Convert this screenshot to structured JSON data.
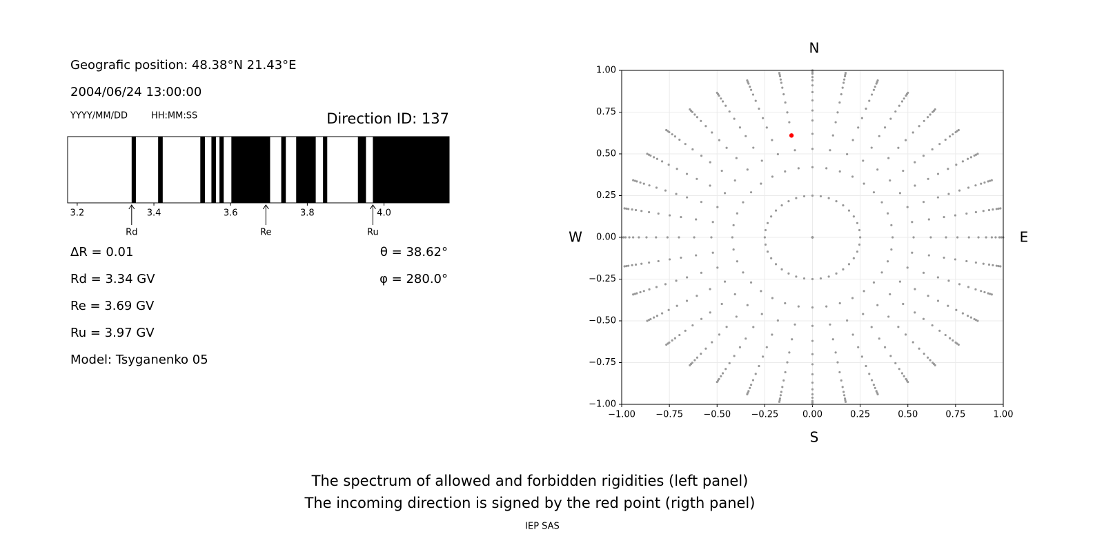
{
  "header": {
    "position": "Geografic position: 48.38°N 21.43°E",
    "datetime": "2004/06/24 13:00:00",
    "date_format": "YYYY/MM/DD",
    "time_format": "HH:MM:SS",
    "direction_id": "Direction ID: 137"
  },
  "params_left": [
    "ΔR = 0.01",
    "Rd = 3.34 GV",
    "Re = 3.69 GV",
    "Ru = 3.97 GV",
    "Model: Tsyganenko 05"
  ],
  "params_right": [
    "θ = 38.62°",
    "φ = 280.0°"
  ],
  "chart_data": [
    {
      "type": "broken_bar",
      "xlim": [
        3.175,
        4.17
      ],
      "xticks": [
        3.2,
        3.4,
        3.6,
        3.8,
        {
          "value": 4,
          "label": "4.0"
        }
      ],
      "color": "#000000",
      "bands": [
        [
          3.342,
          3.353
        ],
        [
          3.411,
          3.423
        ],
        [
          3.521,
          3.533
        ],
        [
          3.55,
          3.562
        ],
        [
          3.571,
          3.582
        ],
        [
          3.602,
          3.703
        ],
        [
          3.732,
          3.744
        ],
        [
          3.771,
          3.822
        ],
        [
          3.841,
          3.852
        ],
        [
          3.932,
          3.953
        ],
        [
          3.971,
          4.17
        ]
      ],
      "markers": [
        {
          "label": "Rd",
          "value": 3.342
        },
        {
          "label": "Re",
          "value": 3.692
        },
        {
          "label": "Ru",
          "value": 3.971
        }
      ]
    },
    {
      "type": "scatter",
      "xlim": [
        -1,
        1
      ],
      "ylim": [
        -1,
        1
      ],
      "xticks": [
        {
          "value": -1,
          "label": "−1.00"
        },
        {
          "value": -0.75,
          "label": "−0.75"
        },
        {
          "value": -0.5,
          "label": "−0.50"
        },
        {
          "value": -0.25,
          "label": "−0.25"
        },
        {
          "value": 0,
          "label": "0.00"
        },
        {
          "value": 0.25,
          "label": "0.25"
        },
        {
          "value": 0.5,
          "label": "0.50"
        },
        {
          "value": 0.75,
          "label": "0.75"
        },
        {
          "value": 1,
          "label": "1.00"
        }
      ],
      "yticks": [
        {
          "value": -1,
          "label": "−1.00"
        },
        {
          "value": -0.75,
          "label": "−0.75"
        },
        {
          "value": -0.5,
          "label": "−0.50"
        },
        {
          "value": -0.25,
          "label": "−0.25"
        },
        {
          "value": 0,
          "label": "0.00"
        },
        {
          "value": 0.25,
          "label": "0.25"
        },
        {
          "value": 0.5,
          "label": "0.50"
        },
        {
          "value": 0.75,
          "label": "0.75"
        },
        {
          "value": 1,
          "label": "1.00"
        }
      ],
      "grid": true,
      "point_color": "#999999",
      "rings": [
        0,
        0.25,
        0.42,
        0.53,
        0.62,
        0.7,
        0.76,
        0.82,
        0.87,
        0.91,
        0.94,
        0.96,
        0.98,
        0.99,
        1
      ],
      "spokes": [
        0,
        10,
        20,
        30,
        40,
        50,
        60,
        70,
        80,
        90,
        100,
        110,
        120,
        130,
        140,
        150,
        160,
        170,
        180,
        190,
        200,
        210,
        220,
        230,
        240,
        250,
        260,
        270,
        280,
        290,
        300,
        310,
        320,
        330,
        340,
        350
      ],
      "highlight": {
        "x": -0.11,
        "y": 0.61,
        "color": "#ff0000"
      },
      "compass": {
        "north": "N",
        "south": "S",
        "west": "W",
        "east": "E"
      }
    }
  ],
  "footer": {
    "line1": "The spectrum of allowed and forbidden rigidities (left panel)",
    "line2": "The incoming direction is signed by the red point (rigth panel)",
    "credit": "IEP SAS"
  }
}
